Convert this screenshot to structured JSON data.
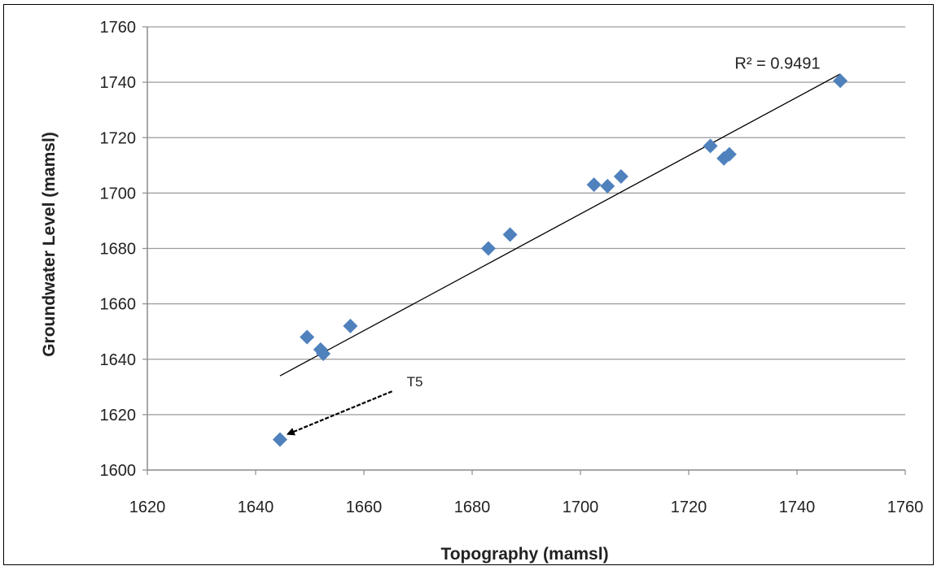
{
  "chart_data": {
    "type": "scatter",
    "xlabel": "Topography (mamsl)",
    "ylabel": "Groundwater Level (mamsl)",
    "xlim": [
      1620,
      1760
    ],
    "ylim": [
      1600,
      1760
    ],
    "x_ticks": [
      1620,
      1640,
      1660,
      1680,
      1700,
      1720,
      1740,
      1760
    ],
    "y_ticks": [
      1600,
      1620,
      1640,
      1660,
      1680,
      1700,
      1720,
      1740,
      1760
    ],
    "grid": "horizontal",
    "marker_color": "#4f81bd",
    "marker": "diamond",
    "points": [
      {
        "x": 1644.5,
        "y": 1611
      },
      {
        "x": 1649.5,
        "y": 1648
      },
      {
        "x": 1652,
        "y": 1643.5
      },
      {
        "x": 1652.5,
        "y": 1642
      },
      {
        "x": 1657.5,
        "y": 1652
      },
      {
        "x": 1683,
        "y": 1680
      },
      {
        "x": 1687,
        "y": 1685
      },
      {
        "x": 1702.5,
        "y": 1703
      },
      {
        "x": 1705,
        "y": 1702.5
      },
      {
        "x": 1707.5,
        "y": 1706
      },
      {
        "x": 1724,
        "y": 1717
      },
      {
        "x": 1726.5,
        "y": 1712.5
      },
      {
        "x": 1727.5,
        "y": 1714
      },
      {
        "x": 1748,
        "y": 1740.5
      }
    ],
    "trendline": {
      "x": [
        1644.5,
        1748
      ],
      "y": [
        1634,
        1743
      ]
    },
    "annotations": [
      {
        "text": "R² = 0.9491",
        "x": 1728.5,
        "y": 1747
      },
      {
        "text": "T5",
        "x": 1665.5,
        "y": 1629,
        "arrow_to": {
          "x": 1645.5,
          "y": 1612.5
        }
      }
    ]
  }
}
